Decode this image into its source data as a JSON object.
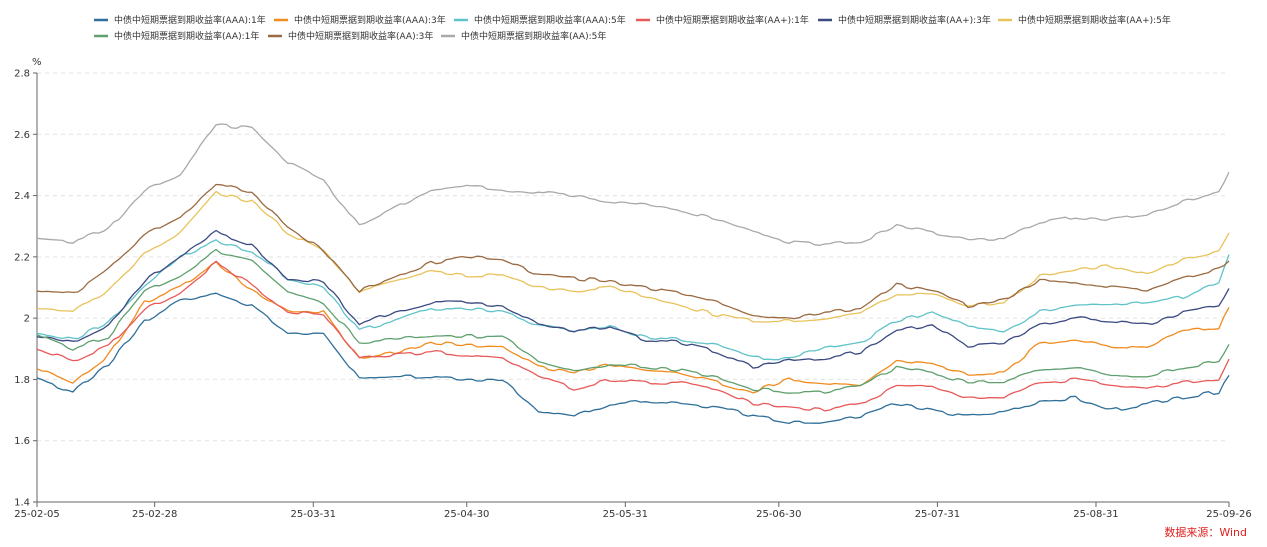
{
  "chart_data": {
    "type": "line",
    "unit": "%",
    "ylim": [
      1.4,
      2.8
    ],
    "yticks": [
      "1.4",
      "1.6",
      "1.8",
      "2",
      "2.2",
      "2.4",
      "2.6",
      "2.8"
    ],
    "xlim": [
      "2025-02-05",
      "2025-09-26"
    ],
    "xticks": [
      {
        "date": "2025-02-05",
        "label": "25-02-05"
      },
      {
        "date": "2025-02-28",
        "label": "25-02-28"
      },
      {
        "date": "2025-03-31",
        "label": "25-03-31"
      },
      {
        "date": "2025-04-30",
        "label": "25-04-30"
      },
      {
        "date": "2025-05-31",
        "label": "25-05-31"
      },
      {
        "date": "2025-06-30",
        "label": "25-06-30"
      },
      {
        "date": "2025-07-31",
        "label": "25-07-31"
      },
      {
        "date": "2025-08-31",
        "label": "25-08-31"
      },
      {
        "date": "2025-09-26",
        "label": "25-09-26"
      }
    ],
    "grid": "horizontal-dashed",
    "legend": "top",
    "source": "数据来源：Wind",
    "x": [
      "2025-02-05",
      "2025-02-12",
      "2025-02-19",
      "2025-02-26",
      "2025-03-05",
      "2025-03-12",
      "2025-03-19",
      "2025-03-26",
      "2025-04-02",
      "2025-04-09",
      "2025-04-16",
      "2025-04-23",
      "2025-04-30",
      "2025-05-07",
      "2025-05-14",
      "2025-05-21",
      "2025-05-28",
      "2025-06-04",
      "2025-06-11",
      "2025-06-18",
      "2025-06-25",
      "2025-07-02",
      "2025-07-09",
      "2025-07-16",
      "2025-07-23",
      "2025-07-30",
      "2025-08-06",
      "2025-08-13",
      "2025-08-20",
      "2025-08-27",
      "2025-09-03",
      "2025-09-10",
      "2025-09-17",
      "2025-09-24",
      "2025-09-26"
    ],
    "series": [
      {
        "name": "中债中短期票据到期收益率(AAA):1年",
        "color": "#2f6f9a",
        "values": [
          1.8,
          1.76,
          1.85,
          1.99,
          2.06,
          2.08,
          2.04,
          1.95,
          1.95,
          1.8,
          1.81,
          1.81,
          1.8,
          1.8,
          1.7,
          1.68,
          1.72,
          1.73,
          1.72,
          1.71,
          1.68,
          1.66,
          1.66,
          1.68,
          1.72,
          1.7,
          1.68,
          1.69,
          1.73,
          1.74,
          1.7,
          1.72,
          1.74,
          1.76,
          1.81
        ]
      },
      {
        "name": "中债中短期票据到期收益率(AAA):3年",
        "color": "#f08c1e",
        "values": [
          1.84,
          1.79,
          1.88,
          2.05,
          2.1,
          2.18,
          2.09,
          2.02,
          2.02,
          1.87,
          1.89,
          1.92,
          1.91,
          1.91,
          1.84,
          1.82,
          1.85,
          1.83,
          1.82,
          1.79,
          1.76,
          1.8,
          1.79,
          1.78,
          1.86,
          1.85,
          1.82,
          1.82,
          1.92,
          1.93,
          1.91,
          1.9,
          1.96,
          1.97,
          2.03
        ]
      },
      {
        "name": "中债中短期票据到期收益率(AAA):5年",
        "color": "#5fc3c9",
        "values": [
          1.95,
          1.93,
          1.99,
          2.1,
          2.2,
          2.25,
          2.22,
          2.13,
          2.1,
          1.96,
          1.99,
          2.03,
          2.03,
          2.02,
          1.98,
          1.96,
          1.97,
          1.94,
          1.93,
          1.91,
          1.87,
          1.87,
          1.9,
          1.92,
          1.99,
          2.02,
          1.97,
          1.96,
          2.02,
          2.04,
          2.04,
          2.05,
          2.07,
          2.12,
          2.21
        ]
      },
      {
        "name": "中债中短期票据到期收益率(AA+):1年",
        "color": "#e85a5a",
        "values": [
          1.9,
          1.86,
          1.91,
          2.03,
          2.08,
          2.18,
          2.11,
          2.02,
          2.01,
          1.87,
          1.88,
          1.89,
          1.88,
          1.87,
          1.81,
          1.77,
          1.8,
          1.79,
          1.79,
          1.77,
          1.72,
          1.71,
          1.7,
          1.72,
          1.78,
          1.78,
          1.74,
          1.74,
          1.79,
          1.8,
          1.78,
          1.77,
          1.79,
          1.8,
          1.87
        ]
      },
      {
        "name": "中债中短期票据到期收益率(AA+):3年",
        "color": "#3c4a82",
        "values": [
          1.94,
          1.92,
          1.98,
          2.12,
          2.2,
          2.28,
          2.24,
          2.13,
          2.12,
          1.98,
          2.02,
          2.05,
          2.05,
          2.04,
          1.98,
          1.96,
          1.97,
          1.93,
          1.92,
          1.89,
          1.84,
          1.86,
          1.87,
          1.89,
          1.96,
          1.98,
          1.91,
          1.92,
          1.98,
          2.0,
          1.99,
          1.98,
          2.02,
          2.04,
          2.1
        ]
      },
      {
        "name": "中债中短期票据到期收益率(AA+):5年",
        "color": "#e8c25a",
        "values": [
          2.03,
          2.02,
          2.09,
          2.21,
          2.28,
          2.41,
          2.38,
          2.28,
          2.22,
          2.09,
          2.12,
          2.15,
          2.14,
          2.14,
          2.1,
          2.09,
          2.1,
          2.07,
          2.04,
          2.01,
          1.99,
          1.99,
          2.0,
          2.02,
          2.08,
          2.08,
          2.04,
          2.05,
          2.14,
          2.16,
          2.17,
          2.14,
          2.19,
          2.22,
          2.28
        ]
      },
      {
        "name": "中债中短期票据到期收益率(AA):1年",
        "color": "#5fa06e",
        "values": [
          1.95,
          1.9,
          1.94,
          2.09,
          2.14,
          2.22,
          2.19,
          2.09,
          2.05,
          1.92,
          1.93,
          1.94,
          1.94,
          1.94,
          1.86,
          1.83,
          1.85,
          1.84,
          1.83,
          1.81,
          1.77,
          1.76,
          1.76,
          1.78,
          1.84,
          1.82,
          1.79,
          1.79,
          1.83,
          1.84,
          1.81,
          1.81,
          1.84,
          1.86,
          1.92
        ]
      },
      {
        "name": "中债中短期票据到期收益率(AA):3年",
        "color": "#9a6a42",
        "values": [
          2.09,
          2.08,
          2.16,
          2.27,
          2.33,
          2.44,
          2.41,
          2.3,
          2.22,
          2.09,
          2.13,
          2.18,
          2.2,
          2.19,
          2.14,
          2.13,
          2.12,
          2.1,
          2.08,
          2.05,
          2.01,
          2.0,
          2.02,
          2.03,
          2.11,
          2.09,
          2.04,
          2.06,
          2.12,
          2.12,
          2.1,
          2.09,
          2.13,
          2.16,
          2.19
        ]
      },
      {
        "name": "中债中短期票据到期收益率(AA):5年",
        "color": "#a9a9a9",
        "values": [
          2.26,
          2.25,
          2.29,
          2.42,
          2.47,
          2.63,
          2.62,
          2.51,
          2.45,
          2.3,
          2.36,
          2.42,
          2.43,
          2.42,
          2.41,
          2.4,
          2.38,
          2.37,
          2.35,
          2.32,
          2.28,
          2.25,
          2.24,
          2.25,
          2.3,
          2.28,
          2.26,
          2.26,
          2.31,
          2.33,
          2.32,
          2.34,
          2.38,
          2.41,
          2.48
        ]
      }
    ]
  }
}
